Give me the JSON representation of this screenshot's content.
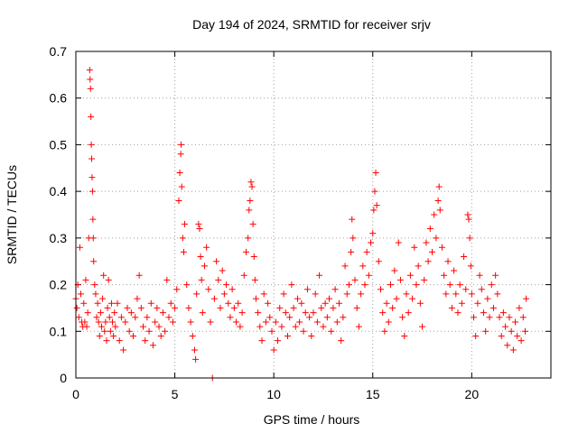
{
  "chart_data": {
    "type": "scatter",
    "title": "Day 194 of 2024, SRMTID for receiver srjv",
    "xlabel": "GPS time / hours",
    "ylabel": "SRMTID / TECUs",
    "xlim": [
      0,
      24
    ],
    "ylim": [
      0,
      0.7
    ],
    "xticks": [
      0,
      5,
      10,
      15,
      20
    ],
    "xtick_labels": [
      "0",
      "5",
      "10",
      "15",
      "20"
    ],
    "yticks": [
      0,
      0.1,
      0.2,
      0.3,
      0.4,
      0.5,
      0.6,
      0.7
    ],
    "ytick_labels": [
      "0",
      "0.1",
      "0.2",
      "0.3",
      "0.4",
      "0.5",
      "0.6",
      "0.7"
    ],
    "grid": true,
    "marker": "+",
    "color": "#ff0000",
    "series": [
      {
        "name": "srjv",
        "points": [
          [
            0.0,
            0.17
          ],
          [
            0.05,
            0.15
          ],
          [
            0.1,
            0.2
          ],
          [
            0.15,
            0.13
          ],
          [
            0.2,
            0.28
          ],
          [
            0.25,
            0.18
          ],
          [
            0.3,
            0.12
          ],
          [
            0.35,
            0.11
          ],
          [
            0.4,
            0.16
          ],
          [
            0.45,
            0.12
          ],
          [
            0.5,
            0.21
          ],
          [
            0.55,
            0.11
          ],
          [
            0.6,
            0.14
          ],
          [
            0.65,
            0.3
          ],
          [
            0.7,
            0.66
          ],
          [
            0.72,
            0.64
          ],
          [
            0.74,
            0.62
          ],
          [
            0.76,
            0.56
          ],
          [
            0.78,
            0.5
          ],
          [
            0.8,
            0.47
          ],
          [
            0.82,
            0.43
          ],
          [
            0.84,
            0.4
          ],
          [
            0.86,
            0.34
          ],
          [
            0.88,
            0.3
          ],
          [
            0.9,
            0.25
          ],
          [
            0.95,
            0.2
          ],
          [
            1.0,
            0.18
          ],
          [
            1.05,
            0.13
          ],
          [
            1.1,
            0.16
          ],
          [
            1.15,
            0.12
          ],
          [
            1.2,
            0.09
          ],
          [
            1.25,
            0.14
          ],
          [
            1.3,
            0.11
          ],
          [
            1.35,
            0.17
          ],
          [
            1.4,
            0.22
          ],
          [
            1.45,
            0.1
          ],
          [
            1.5,
            0.12
          ],
          [
            1.55,
            0.08
          ],
          [
            1.6,
            0.15
          ],
          [
            1.65,
            0.21
          ],
          [
            1.7,
            0.13
          ],
          [
            1.75,
            0.1
          ],
          [
            1.8,
            0.16
          ],
          [
            1.85,
            0.12
          ],
          [
            1.9,
            0.09
          ],
          [
            1.95,
            0.14
          ],
          [
            2.0,
            0.11
          ],
          [
            2.1,
            0.16
          ],
          [
            2.2,
            0.08
          ],
          [
            2.3,
            0.13
          ],
          [
            2.4,
            0.06
          ],
          [
            2.5,
            0.12
          ],
          [
            2.6,
            0.15
          ],
          [
            2.7,
            0.1
          ],
          [
            2.8,
            0.14
          ],
          [
            2.9,
            0.09
          ],
          [
            3.0,
            0.13
          ],
          [
            3.1,
            0.17
          ],
          [
            3.2,
            0.22
          ],
          [
            3.3,
            0.15
          ],
          [
            3.4,
            0.11
          ],
          [
            3.5,
            0.08
          ],
          [
            3.6,
            0.13
          ],
          [
            3.7,
            0.1
          ],
          [
            3.8,
            0.16
          ],
          [
            3.9,
            0.07
          ],
          [
            4.0,
            0.12
          ],
          [
            4.1,
            0.15
          ],
          [
            4.2,
            0.11
          ],
          [
            4.3,
            0.09
          ],
          [
            4.4,
            0.14
          ],
          [
            4.5,
            0.1
          ],
          [
            4.6,
            0.21
          ],
          [
            4.7,
            0.13
          ],
          [
            4.8,
            0.16
          ],
          [
            4.9,
            0.12
          ],
          [
            5.0,
            0.15
          ],
          [
            5.1,
            0.19
          ],
          [
            5.2,
            0.38
          ],
          [
            5.25,
            0.44
          ],
          [
            5.3,
            0.48
          ],
          [
            5.32,
            0.5
          ],
          [
            5.35,
            0.41
          ],
          [
            5.4,
            0.3
          ],
          [
            5.45,
            0.27
          ],
          [
            5.5,
            0.33
          ],
          [
            5.6,
            0.2
          ],
          [
            5.7,
            0.15
          ],
          [
            5.8,
            0.12
          ],
          [
            5.9,
            0.09
          ],
          [
            6.0,
            0.06
          ],
          [
            6.05,
            0.04
          ],
          [
            6.1,
            0.18
          ],
          [
            6.2,
            0.33
          ],
          [
            6.25,
            0.32
          ],
          [
            6.3,
            0.26
          ],
          [
            6.35,
            0.21
          ],
          [
            6.4,
            0.14
          ],
          [
            6.5,
            0.24
          ],
          [
            6.6,
            0.28
          ],
          [
            6.7,
            0.19
          ],
          [
            6.8,
            0.12
          ],
          [
            6.9,
            0.0
          ],
          [
            7.0,
            0.17
          ],
          [
            7.1,
            0.25
          ],
          [
            7.2,
            0.21
          ],
          [
            7.3,
            0.15
          ],
          [
            7.4,
            0.23
          ],
          [
            7.5,
            0.18
          ],
          [
            7.6,
            0.2
          ],
          [
            7.7,
            0.16
          ],
          [
            7.8,
            0.13
          ],
          [
            7.9,
            0.19
          ],
          [
            8.0,
            0.15
          ],
          [
            8.1,
            0.12
          ],
          [
            8.2,
            0.16
          ],
          [
            8.3,
            0.11
          ],
          [
            8.4,
            0.14
          ],
          [
            8.5,
            0.22
          ],
          [
            8.6,
            0.27
          ],
          [
            8.7,
            0.3
          ],
          [
            8.75,
            0.36
          ],
          [
            8.8,
            0.38
          ],
          [
            8.85,
            0.42
          ],
          [
            8.9,
            0.41
          ],
          [
            8.95,
            0.33
          ],
          [
            9.0,
            0.26
          ],
          [
            9.05,
            0.21
          ],
          [
            9.1,
            0.17
          ],
          [
            9.2,
            0.14
          ],
          [
            9.3,
            0.11
          ],
          [
            9.4,
            0.08
          ],
          [
            9.5,
            0.18
          ],
          [
            9.6,
            0.12
          ],
          [
            9.7,
            0.16
          ],
          [
            9.8,
            0.13
          ],
          [
            9.9,
            0.1
          ],
          [
            10.0,
            0.06
          ],
          [
            10.1,
            0.12
          ],
          [
            10.2,
            0.08
          ],
          [
            10.3,
            0.15
          ],
          [
            10.4,
            0.11
          ],
          [
            10.5,
            0.18
          ],
          [
            10.6,
            0.14
          ],
          [
            10.7,
            0.09
          ],
          [
            10.8,
            0.13
          ],
          [
            10.9,
            0.2
          ],
          [
            11.0,
            0.15
          ],
          [
            11.1,
            0.11
          ],
          [
            11.2,
            0.17
          ],
          [
            11.3,
            0.12
          ],
          [
            11.4,
            0.16
          ],
          [
            11.5,
            0.1
          ],
          [
            11.6,
            0.14
          ],
          [
            11.7,
            0.19
          ],
          [
            11.8,
            0.13
          ],
          [
            11.9,
            0.09
          ],
          [
            12.0,
            0.14
          ],
          [
            12.1,
            0.18
          ],
          [
            12.2,
            0.12
          ],
          [
            12.3,
            0.22
          ],
          [
            12.4,
            0.15
          ],
          [
            12.5,
            0.11
          ],
          [
            12.6,
            0.16
          ],
          [
            12.7,
            0.13
          ],
          [
            12.8,
            0.17
          ],
          [
            12.9,
            0.1
          ],
          [
            13.0,
            0.15
          ],
          [
            13.1,
            0.19
          ],
          [
            13.2,
            0.12
          ],
          [
            13.3,
            0.16
          ],
          [
            13.4,
            0.08
          ],
          [
            13.5,
            0.13
          ],
          [
            13.6,
            0.24
          ],
          [
            13.7,
            0.18
          ],
          [
            13.8,
            0.2
          ],
          [
            13.9,
            0.27
          ],
          [
            13.95,
            0.34
          ],
          [
            14.0,
            0.3
          ],
          [
            14.1,
            0.21
          ],
          [
            14.2,
            0.15
          ],
          [
            14.3,
            0.11
          ],
          [
            14.4,
            0.18
          ],
          [
            14.5,
            0.24
          ],
          [
            14.6,
            0.2
          ],
          [
            14.7,
            0.27
          ],
          [
            14.8,
            0.22
          ],
          [
            14.9,
            0.29
          ],
          [
            15.0,
            0.31
          ],
          [
            15.05,
            0.36
          ],
          [
            15.1,
            0.4
          ],
          [
            15.15,
            0.44
          ],
          [
            15.2,
            0.37
          ],
          [
            15.3,
            0.25
          ],
          [
            15.4,
            0.19
          ],
          [
            15.5,
            0.14
          ],
          [
            15.6,
            0.1
          ],
          [
            15.7,
            0.16
          ],
          [
            15.8,
            0.12
          ],
          [
            15.9,
            0.2
          ],
          [
            16.0,
            0.15
          ],
          [
            16.1,
            0.23
          ],
          [
            16.2,
            0.17
          ],
          [
            16.3,
            0.29
          ],
          [
            16.4,
            0.21
          ],
          [
            16.5,
            0.13
          ],
          [
            16.6,
            0.09
          ],
          [
            16.7,
            0.18
          ],
          [
            16.8,
            0.14
          ],
          [
            16.9,
            0.22
          ],
          [
            17.0,
            0.17
          ],
          [
            17.1,
            0.28
          ],
          [
            17.2,
            0.2
          ],
          [
            17.3,
            0.24
          ],
          [
            17.4,
            0.16
          ],
          [
            17.5,
            0.11
          ],
          [
            17.6,
            0.21
          ],
          [
            17.7,
            0.29
          ],
          [
            17.8,
            0.25
          ],
          [
            17.9,
            0.32
          ],
          [
            18.0,
            0.27
          ],
          [
            18.1,
            0.35
          ],
          [
            18.2,
            0.3
          ],
          [
            18.3,
            0.38
          ],
          [
            18.35,
            0.41
          ],
          [
            18.4,
            0.36
          ],
          [
            18.5,
            0.28
          ],
          [
            18.6,
            0.22
          ],
          [
            18.7,
            0.18
          ],
          [
            18.8,
            0.25
          ],
          [
            18.9,
            0.2
          ],
          [
            19.0,
            0.15
          ],
          [
            19.1,
            0.23
          ],
          [
            19.2,
            0.18
          ],
          [
            19.3,
            0.14
          ],
          [
            19.4,
            0.2
          ],
          [
            19.5,
            0.16
          ],
          [
            19.6,
            0.26
          ],
          [
            19.7,
            0.19
          ],
          [
            19.8,
            0.35
          ],
          [
            19.85,
            0.34
          ],
          [
            19.9,
            0.3
          ],
          [
            19.95,
            0.24
          ],
          [
            20.0,
            0.18
          ],
          [
            20.1,
            0.13
          ],
          [
            20.2,
            0.09
          ],
          [
            20.3,
            0.16
          ],
          [
            20.4,
            0.22
          ],
          [
            20.5,
            0.19
          ],
          [
            20.6,
            0.14
          ],
          [
            20.7,
            0.1
          ],
          [
            20.8,
            0.17
          ],
          [
            20.9,
            0.13
          ],
          [
            21.0,
            0.2
          ],
          [
            21.1,
            0.15
          ],
          [
            21.2,
            0.22
          ],
          [
            21.3,
            0.18
          ],
          [
            21.4,
            0.13
          ],
          [
            21.5,
            0.09
          ],
          [
            21.6,
            0.14
          ],
          [
            21.7,
            0.11
          ],
          [
            21.8,
            0.07
          ],
          [
            21.9,
            0.13
          ],
          [
            22.0,
            0.1
          ],
          [
            22.1,
            0.06
          ],
          [
            22.2,
            0.12
          ],
          [
            22.3,
            0.09
          ],
          [
            22.4,
            0.15
          ],
          [
            22.5,
            0.08
          ],
          [
            22.6,
            0.13
          ],
          [
            22.7,
            0.1
          ],
          [
            22.75,
            0.17
          ]
        ]
      }
    ]
  }
}
